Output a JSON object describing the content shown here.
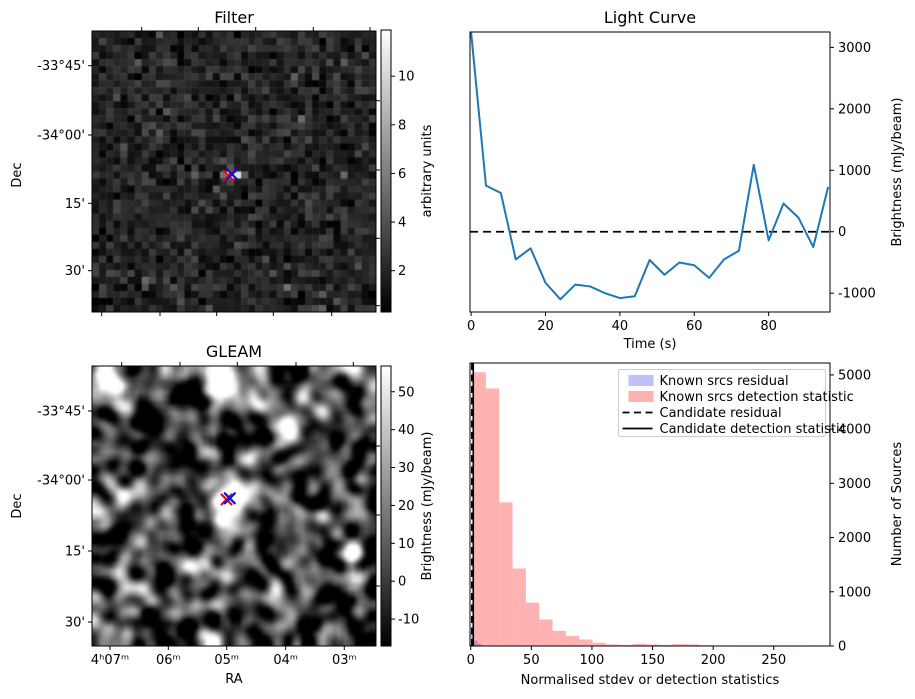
{
  "figure": {
    "background": "#ffffff"
  },
  "colors": {
    "line_blue": "#1f77b4",
    "hist_pink": "#ffb2b2",
    "hist_blue_overlay": "#3232e6",
    "marker_red": "#dd1111",
    "marker_blue": "#1111cc",
    "legend_border": "#cccccc"
  },
  "chart_data": [
    {
      "type": "heatmap",
      "title": "Filter",
      "ylabel": "Dec",
      "ytick_labels": [
        "-33°45'",
        "-34°00'",
        "15'",
        "30'"
      ],
      "colorbar": {
        "label": "arbitrary units",
        "ticks": [
          2,
          4,
          6,
          8,
          10
        ],
        "vmin": 0.3,
        "vmax": 11.9
      },
      "heatmap": {
        "grid": 40,
        "seed": 42,
        "description": "dark pixelated noise with bright central point source",
        "source_cells": [
          {
            "row": 20,
            "col": 18,
            "v": 5.5
          },
          {
            "row": 20,
            "col": 19,
            "v": 11.8
          },
          {
            "row": 20,
            "col": 20,
            "v": 10.5
          },
          {
            "row": 20,
            "col": 21,
            "v": 4.5
          },
          {
            "row": 19,
            "col": 19,
            "v": 4.2
          },
          {
            "row": 21,
            "col": 19,
            "v": 3.8
          }
        ],
        "markers": [
          "red-x",
          "blue-x"
        ]
      }
    },
    {
      "type": "line",
      "title": "Light Curve",
      "xlabel": "Time (s)",
      "ylabel": "Brightness (mJy/beam)",
      "xticks": [
        0,
        20,
        40,
        60,
        80
      ],
      "yticks": [
        -1000,
        0,
        1000,
        2000,
        3000
      ],
      "xlim": [
        -0.3,
        96.5
      ],
      "ylim": [
        -1306,
        3250
      ],
      "baseline": 0,
      "x": [
        0,
        4,
        8,
        12,
        16,
        20,
        24,
        28,
        32,
        36,
        40,
        44,
        48,
        52,
        56,
        60,
        64,
        68,
        72,
        76,
        80,
        84,
        88,
        92,
        96
      ],
      "y": [
        3240,
        750,
        630,
        -450,
        -270,
        -830,
        -1100,
        -860,
        -890,
        -1000,
        -1080,
        -1050,
        -460,
        -700,
        -500,
        -545,
        -750,
        -450,
        -310,
        1090,
        -140,
        460,
        230,
        -250,
        730
      ]
    },
    {
      "type": "heatmap",
      "title": "GLEAM",
      "xlabel": "RA",
      "ylabel": "Dec",
      "xtick_labels": [
        "4ʰ07ᵐ",
        "06ᵐ",
        "05ᵐ",
        "04ᵐ",
        "03ᵐ"
      ],
      "ytick_labels": [
        "-33°45'",
        "-34°00'",
        "15'",
        "30'"
      ],
      "colorbar": {
        "label": "Brightness (mJy/beam)",
        "ticks": [
          -10,
          0,
          10,
          20,
          30,
          40,
          50
        ],
        "vmin": -17.1,
        "vmax": 56.8
      },
      "heatmap": {
        "grid": 80,
        "seed": 7,
        "description": "smoothed grayscale noise field with bright compact sources",
        "blobs": [
          [
            0.44,
            0.025,
            0.03,
            1.0
          ],
          [
            0.45,
            0.065,
            0.026,
            0.95
          ],
          [
            0.685,
            0.215,
            0.028,
            1.0
          ],
          [
            0.08,
            0.115,
            0.035,
            0.5
          ],
          [
            0.1,
            0.46,
            0.028,
            1.0
          ],
          [
            0.475,
            0.465,
            0.048,
            1.0
          ],
          [
            0.445,
            0.55,
            0.02,
            0.85
          ],
          [
            0.35,
            0.72,
            0.028,
            1.0
          ],
          [
            0.085,
            0.73,
            0.026,
            0.75
          ],
          [
            0.91,
            0.665,
            0.024,
            0.9
          ],
          [
            0.15,
            0.875,
            0.022,
            0.45
          ],
          [
            0.03,
            0.02,
            0.03,
            0.45
          ],
          [
            0.7,
            0.545,
            0.035,
            0.4
          ],
          [
            0.97,
            0.35,
            0.02,
            0.35
          ]
        ],
        "markers": [
          "red-x",
          "blue-x"
        ]
      }
    },
    {
      "type": "bar",
      "title": "",
      "xlabel": "Normalised stdev or detection statistics",
      "ylabel": "Number of Sources",
      "xticks": [
        0,
        50,
        100,
        150,
        200,
        250
      ],
      "yticks": [
        0,
        1000,
        2000,
        3000,
        4000,
        5000
      ],
      "xlim": [
        -0.6,
        296.4
      ],
      "ylim": [
        0,
        5220
      ],
      "series": [
        {
          "name": "Known srcs detection statistic",
          "bin_start": 1.5,
          "bin_width": 11,
          "heights": [
            5050,
            4750,
            2650,
            1430,
            800,
            490,
            280,
            185,
            120,
            60,
            30,
            20,
            40,
            30,
            20,
            35,
            30,
            15,
            10,
            8,
            5,
            5,
            5,
            5,
            5,
            12
          ]
        },
        {
          "name": "Known srcs residual",
          "bin_start": 0,
          "bin_width": 2.8,
          "heights": [
            260,
            100,
            45,
            15
          ]
        }
      ],
      "vlines": [
        {
          "name": "Candidate residual",
          "x": 0.9,
          "style": "dashed"
        },
        {
          "name": "Candidate detection statistic",
          "x": 2.1,
          "style": "solid"
        }
      ],
      "legend": [
        "Known srcs residual",
        "Known srcs detection statistic",
        "Candidate residual",
        "Candidate detection statistic"
      ]
    }
  ]
}
